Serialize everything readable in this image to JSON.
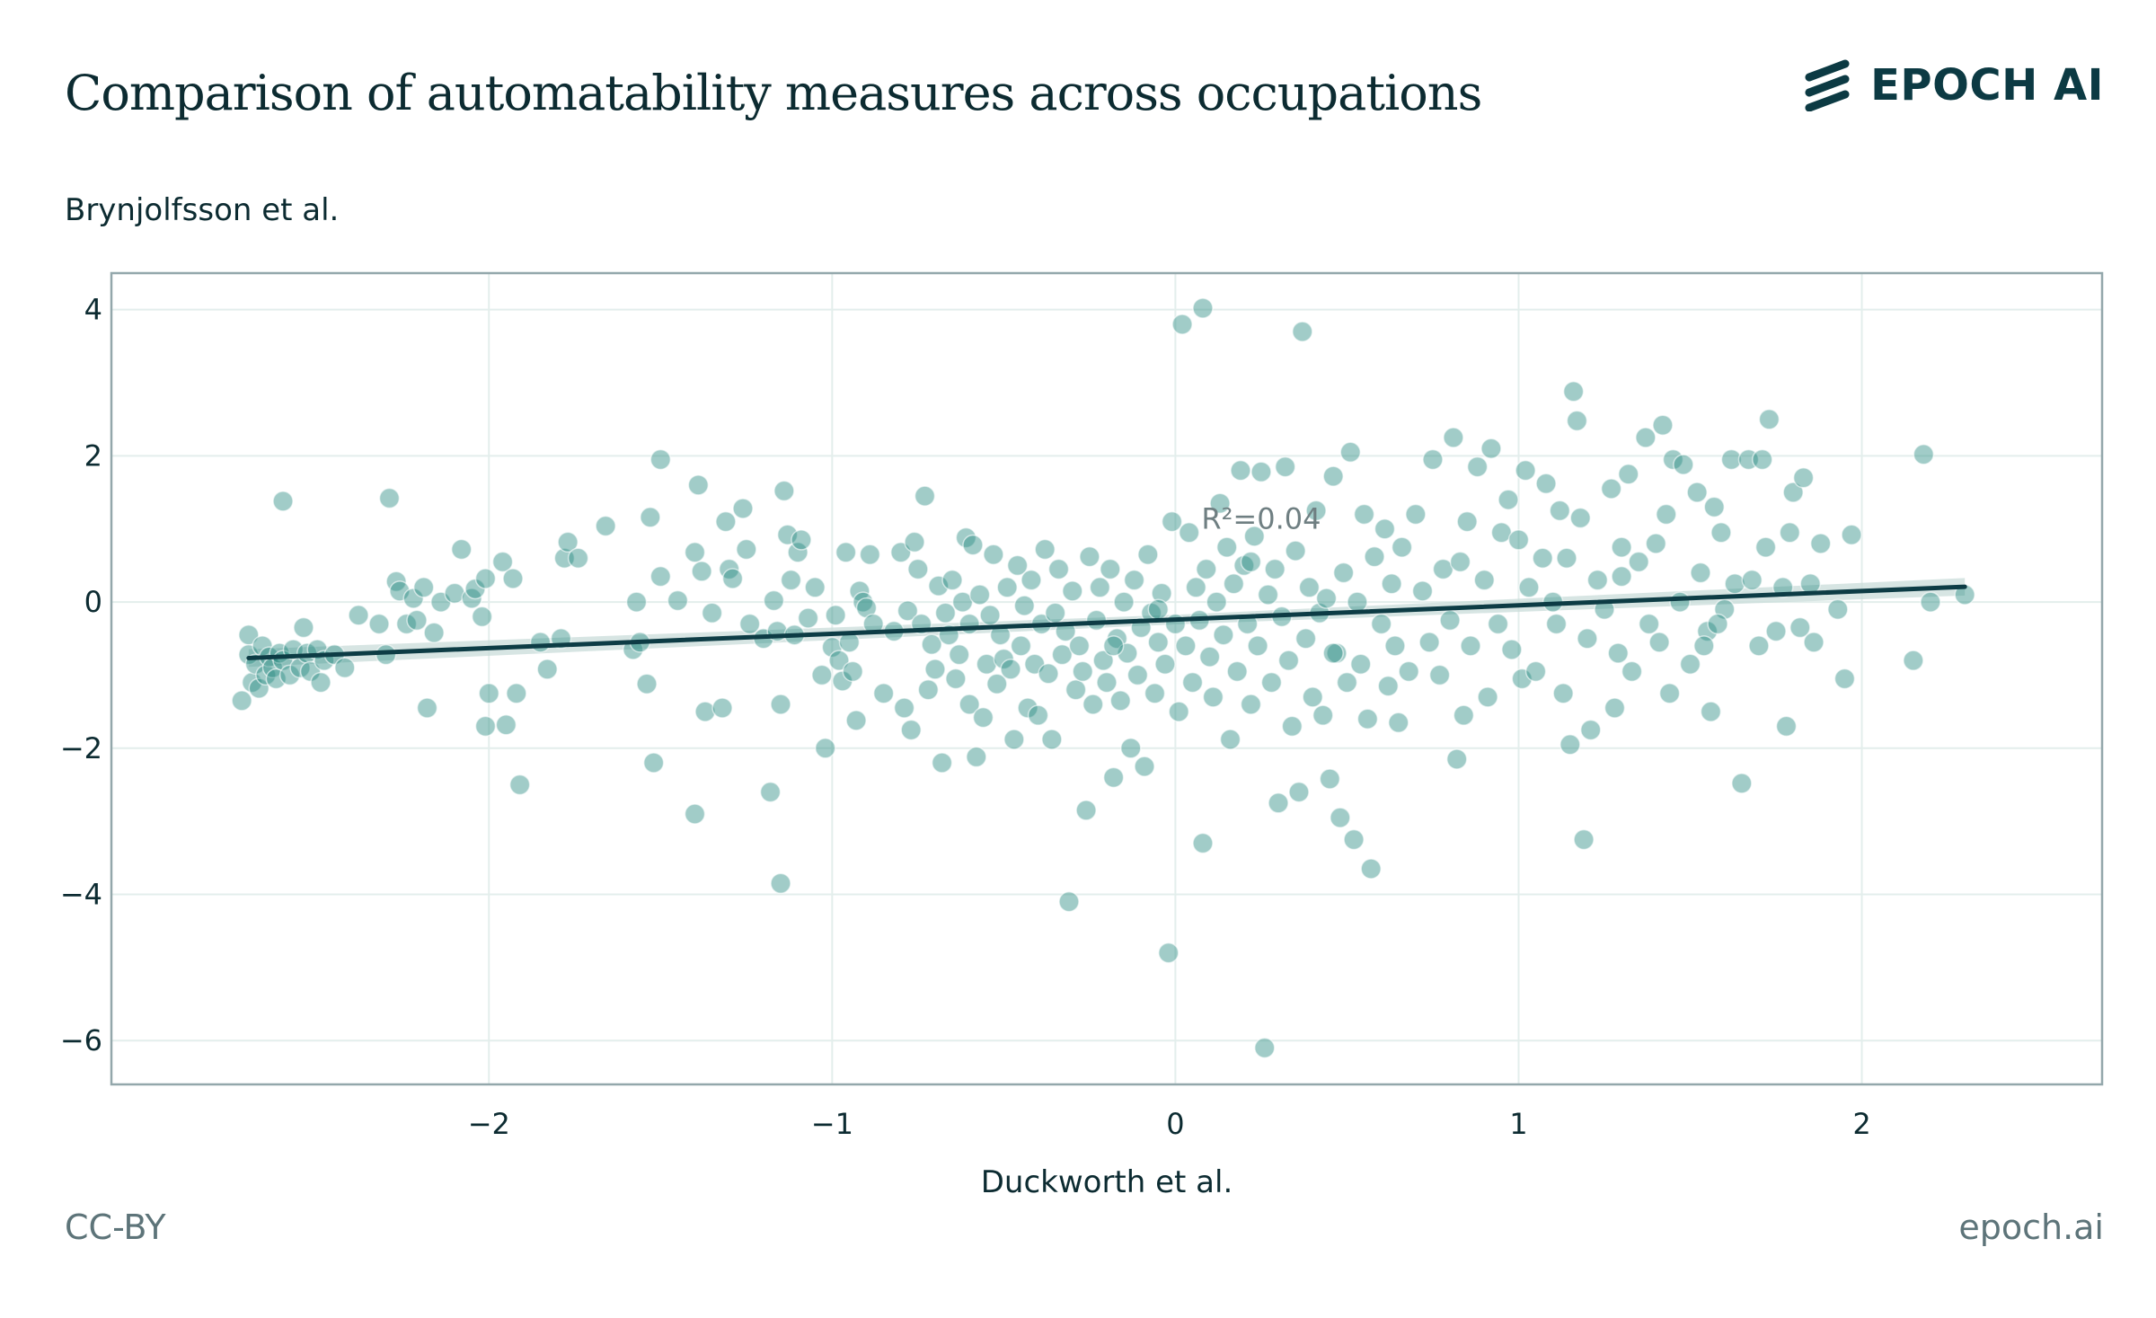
{
  "header": {
    "title": "Comparison of automatability measures across occupations",
    "brand": "EPOCH AI"
  },
  "footer": {
    "license": "CC-BY",
    "site": "epoch.ai"
  },
  "colors": {
    "point": "#2f8f86",
    "line": "#0d3c45",
    "band": "#c9dcda",
    "grid": "#e3eeec",
    "frame": "#93a7ab",
    "text": "#0c2b31"
  },
  "chart_data": {
    "type": "scatter",
    "title": "Comparison of automatability measures across occupations",
    "xlabel": "Duckworth et al.",
    "ylabel": "Brynjolfsson et al.",
    "xlim": [
      -3.1,
      2.7
    ],
    "ylim": [
      -6.6,
      4.5
    ],
    "xticks": [
      -2,
      -1,
      0,
      1,
      2
    ],
    "yticks": [
      -6,
      -4,
      -2,
      0,
      2,
      4
    ],
    "xtick_labels": [
      "−2",
      "−1",
      "0",
      "1",
      "2"
    ],
    "ytick_labels": [
      "−6",
      "−4",
      "−2",
      "0",
      "2",
      "4"
    ],
    "grid": true,
    "annotation": "R²=0.04",
    "annotation_at": [
      0.25,
      1.0
    ],
    "regression": {
      "slope": 0.195,
      "intercept": -0.24,
      "x_range": [
        -2.7,
        2.3
      ],
      "band_halfwidth": 0.12
    },
    "points": [
      [
        -2.72,
        -1.35
      ],
      [
        -2.7,
        -0.45
      ],
      [
        -2.7,
        -0.72
      ],
      [
        -2.69,
        -1.1
      ],
      [
        -2.68,
        -0.85
      ],
      [
        -2.67,
        -1.18
      ],
      [
        -2.66,
        -0.6
      ],
      [
        -2.65,
        -1.0
      ],
      [
        -2.64,
        -0.75
      ],
      [
        -2.63,
        -0.9
      ],
      [
        -2.62,
        -1.05
      ],
      [
        -2.61,
        -0.7
      ],
      [
        -2.6,
        -0.8
      ],
      [
        -2.6,
        1.38
      ],
      [
        -2.58,
        -1.0
      ],
      [
        -2.57,
        -0.65
      ],
      [
        -2.55,
        -0.9
      ],
      [
        -2.54,
        -0.35
      ],
      [
        -2.53,
        -0.7
      ],
      [
        -2.52,
        -0.95
      ],
      [
        -2.5,
        -0.65
      ],
      [
        -2.49,
        -1.1
      ],
      [
        -2.48,
        -0.8
      ],
      [
        -2.45,
        -0.72
      ],
      [
        -2.42,
        -0.9
      ],
      [
        -2.38,
        -0.18
      ],
      [
        -2.32,
        -0.3
      ],
      [
        -2.3,
        -0.72
      ],
      [
        -2.29,
        1.42
      ],
      [
        -2.27,
        0.28
      ],
      [
        -2.26,
        0.15
      ],
      [
        -2.24,
        -0.3
      ],
      [
        -2.22,
        0.05
      ],
      [
        -2.21,
        -0.25
      ],
      [
        -2.19,
        0.2
      ],
      [
        -2.18,
        -1.45
      ],
      [
        -2.16,
        -0.42
      ],
      [
        -2.14,
        0.0
      ],
      [
        -2.1,
        0.12
      ],
      [
        -2.08,
        0.72
      ],
      [
        -2.05,
        0.05
      ],
      [
        -2.04,
        0.18
      ],
      [
        -2.02,
        -0.2
      ],
      [
        -2.01,
        0.32
      ],
      [
        -2.0,
        -1.25
      ],
      [
        -2.01,
        -1.7
      ],
      [
        -1.96,
        0.55
      ],
      [
        -1.95,
        -1.68
      ],
      [
        -1.93,
        0.32
      ],
      [
        -1.92,
        -1.25
      ],
      [
        -1.91,
        -2.5
      ],
      [
        -1.85,
        -0.55
      ],
      [
        -1.83,
        -0.92
      ],
      [
        -1.79,
        -0.5
      ],
      [
        -1.78,
        0.6
      ],
      [
        -1.77,
        0.82
      ],
      [
        -1.74,
        0.6
      ],
      [
        -1.66,
        1.04
      ],
      [
        -1.58,
        -0.65
      ],
      [
        -1.57,
        0.0
      ],
      [
        -1.56,
        -0.55
      ],
      [
        -1.54,
        -1.12
      ],
      [
        -1.53,
        1.16
      ],
      [
        -1.52,
        -2.2
      ],
      [
        -1.5,
        0.35
      ],
      [
        -1.5,
        1.95
      ],
      [
        -1.45,
        0.02
      ],
      [
        -1.4,
        0.68
      ],
      [
        -1.4,
        -2.9
      ],
      [
        -1.39,
        1.6
      ],
      [
        -1.38,
        0.42
      ],
      [
        -1.37,
        -1.5
      ],
      [
        -1.35,
        -0.15
      ],
      [
        -1.32,
        -1.45
      ],
      [
        -1.31,
        1.1
      ],
      [
        -1.3,
        0.45
      ],
      [
        -1.29,
        0.32
      ],
      [
        -1.26,
        1.28
      ],
      [
        -1.25,
        0.72
      ],
      [
        -1.24,
        -0.3
      ],
      [
        -1.2,
        -0.5
      ],
      [
        -1.18,
        -2.6
      ],
      [
        -1.17,
        0.02
      ],
      [
        -1.16,
        -0.4
      ],
      [
        -1.15,
        -1.4
      ],
      [
        -1.15,
        -3.85
      ],
      [
        -1.14,
        1.52
      ],
      [
        -1.13,
        0.92
      ],
      [
        -1.12,
        0.3
      ],
      [
        -1.11,
        -0.45
      ],
      [
        -1.1,
        0.68
      ],
      [
        -1.09,
        0.85
      ],
      [
        -1.07,
        -0.22
      ],
      [
        -1.05,
        0.2
      ],
      [
        -1.03,
        -1.0
      ],
      [
        -1.02,
        -2.0
      ],
      [
        -1.0,
        -0.62
      ],
      [
        -0.99,
        -0.18
      ],
      [
        -0.98,
        -0.8
      ],
      [
        -0.97,
        -1.08
      ],
      [
        -0.96,
        0.68
      ],
      [
        -0.95,
        -0.55
      ],
      [
        -0.94,
        -0.95
      ],
      [
        -0.93,
        -1.62
      ],
      [
        -0.92,
        0.15
      ],
      [
        -0.91,
        0.0
      ],
      [
        -0.9,
        -0.08
      ],
      [
        -0.89,
        0.65
      ],
      [
        -0.88,
        -0.3
      ],
      [
        -0.85,
        -1.25
      ],
      [
        -0.82,
        -0.4
      ],
      [
        -0.8,
        0.68
      ],
      [
        -0.79,
        -1.45
      ],
      [
        -0.78,
        -0.12
      ],
      [
        -0.77,
        -1.75
      ],
      [
        -0.76,
        0.82
      ],
      [
        -0.75,
        0.45
      ],
      [
        -0.74,
        -0.3
      ],
      [
        -0.73,
        1.45
      ],
      [
        -0.72,
        -1.2
      ],
      [
        -0.71,
        -0.58
      ],
      [
        -0.7,
        -0.92
      ],
      [
        -0.69,
        0.22
      ],
      [
        -0.68,
        -2.2
      ],
      [
        -0.67,
        -0.15
      ],
      [
        -0.66,
        -0.45
      ],
      [
        -0.65,
        0.3
      ],
      [
        -0.64,
        -1.05
      ],
      [
        -0.63,
        -0.72
      ],
      [
        -0.62,
        0.0
      ],
      [
        -0.61,
        0.88
      ],
      [
        -0.6,
        -0.3
      ],
      [
        -0.6,
        -1.4
      ],
      [
        -0.59,
        0.78
      ],
      [
        -0.58,
        -2.12
      ],
      [
        -0.57,
        0.1
      ],
      [
        -0.56,
        -1.58
      ],
      [
        -0.55,
        -0.85
      ],
      [
        -0.54,
        -0.18
      ],
      [
        -0.53,
        0.65
      ],
      [
        -0.52,
        -1.12
      ],
      [
        -0.51,
        -0.45
      ],
      [
        -0.5,
        -0.78
      ],
      [
        -0.49,
        0.2
      ],
      [
        -0.48,
        -0.92
      ],
      [
        -0.47,
        -1.88
      ],
      [
        -0.46,
        0.5
      ],
      [
        -0.45,
        -0.6
      ],
      [
        -0.44,
        -0.05
      ],
      [
        -0.43,
        -1.45
      ],
      [
        -0.42,
        0.3
      ],
      [
        -0.41,
        -0.85
      ],
      [
        -0.4,
        -1.55
      ],
      [
        -0.39,
        -0.3
      ],
      [
        -0.38,
        0.72
      ],
      [
        -0.37,
        -0.98
      ],
      [
        -0.36,
        -1.88
      ],
      [
        -0.35,
        -0.15
      ],
      [
        -0.34,
        0.45
      ],
      [
        -0.33,
        -0.72
      ],
      [
        -0.32,
        -0.4
      ],
      [
        -0.31,
        -4.1
      ],
      [
        -0.3,
        0.15
      ],
      [
        -0.29,
        -1.2
      ],
      [
        -0.28,
        -0.6
      ],
      [
        -0.27,
        -0.95
      ],
      [
        -0.26,
        -2.85
      ],
      [
        -0.25,
        0.62
      ],
      [
        -0.24,
        -1.4
      ],
      [
        -0.23,
        -0.25
      ],
      [
        -0.22,
        0.2
      ],
      [
        -0.21,
        -0.8
      ],
      [
        -0.2,
        -1.1
      ],
      [
        -0.19,
        0.45
      ],
      [
        -0.18,
        -2.4
      ],
      [
        -0.17,
        -0.5
      ],
      [
        -0.16,
        -1.35
      ],
      [
        -0.15,
        0.0
      ],
      [
        -0.14,
        -0.7
      ],
      [
        -0.13,
        -2.0
      ],
      [
        -0.12,
        0.3
      ],
      [
        -0.11,
        -1.0
      ],
      [
        -0.1,
        -0.35
      ],
      [
        -0.09,
        -2.25
      ],
      [
        -0.08,
        0.65
      ],
      [
        -0.07,
        -0.15
      ],
      [
        -0.06,
        -1.25
      ],
      [
        -0.05,
        -0.55
      ],
      [
        -0.04,
        0.12
      ],
      [
        -0.03,
        -0.85
      ],
      [
        -0.02,
        -4.8
      ],
      [
        -0.01,
        1.1
      ],
      [
        0.0,
        -0.3
      ],
      [
        0.01,
        -1.5
      ],
      [
        0.02,
        3.8
      ],
      [
        0.03,
        -0.6
      ],
      [
        0.04,
        0.95
      ],
      [
        0.05,
        -1.1
      ],
      [
        0.06,
        0.2
      ],
      [
        0.07,
        -0.25
      ],
      [
        0.08,
        4.02
      ],
      [
        0.08,
        -3.3
      ],
      [
        0.09,
        0.45
      ],
      [
        0.1,
        -0.75
      ],
      [
        0.11,
        -1.3
      ],
      [
        0.12,
        0.0
      ],
      [
        0.13,
        1.35
      ],
      [
        0.14,
        -0.45
      ],
      [
        0.15,
        0.75
      ],
      [
        0.16,
        -1.88
      ],
      [
        0.17,
        0.25
      ],
      [
        0.18,
        -0.95
      ],
      [
        0.19,
        1.8
      ],
      [
        0.2,
        0.5
      ],
      [
        0.21,
        -0.3
      ],
      [
        0.22,
        -1.4
      ],
      [
        0.23,
        0.9
      ],
      [
        0.24,
        -0.6
      ],
      [
        0.25,
        1.78
      ],
      [
        0.26,
        -6.1
      ],
      [
        0.27,
        0.1
      ],
      [
        0.28,
        -1.1
      ],
      [
        0.29,
        0.45
      ],
      [
        0.3,
        -2.75
      ],
      [
        0.31,
        -0.2
      ],
      [
        0.32,
        1.85
      ],
      [
        0.33,
        -0.8
      ],
      [
        0.34,
        -1.7
      ],
      [
        0.35,
        0.7
      ],
      [
        0.36,
        -2.6
      ],
      [
        0.37,
        3.7
      ],
      [
        0.38,
        -0.5
      ],
      [
        0.39,
        0.2
      ],
      [
        0.4,
        -1.3
      ],
      [
        0.41,
        1.25
      ],
      [
        0.42,
        -0.15
      ],
      [
        0.43,
        -1.55
      ],
      [
        0.44,
        0.05
      ],
      [
        0.45,
        -2.42
      ],
      [
        0.46,
        1.72
      ],
      [
        0.47,
        -0.7
      ],
      [
        0.48,
        -2.95
      ],
      [
        0.49,
        0.4
      ],
      [
        0.5,
        -1.1
      ],
      [
        0.51,
        2.05
      ],
      [
        0.52,
        -3.25
      ],
      [
        0.53,
        0.0
      ],
      [
        0.54,
        -0.85
      ],
      [
        0.55,
        1.2
      ],
      [
        0.56,
        -1.6
      ],
      [
        0.57,
        -3.65
      ],
      [
        0.58,
        0.62
      ],
      [
        0.6,
        -0.3
      ],
      [
        0.61,
        1.0
      ],
      [
        0.62,
        -1.15
      ],
      [
        0.63,
        0.25
      ],
      [
        0.64,
        -0.6
      ],
      [
        0.65,
        -1.65
      ],
      [
        0.66,
        0.75
      ],
      [
        0.68,
        -0.95
      ],
      [
        0.7,
        1.2
      ],
      [
        0.72,
        0.15
      ],
      [
        0.74,
        -0.55
      ],
      [
        0.75,
        1.95
      ],
      [
        0.77,
        -1.0
      ],
      [
        0.78,
        0.45
      ],
      [
        0.8,
        -0.25
      ],
      [
        0.81,
        2.25
      ],
      [
        0.82,
        -2.15
      ],
      [
        0.83,
        0.55
      ],
      [
        0.84,
        -1.55
      ],
      [
        0.85,
        1.1
      ],
      [
        0.86,
        -0.6
      ],
      [
        0.88,
        1.85
      ],
      [
        0.9,
        0.3
      ],
      [
        0.91,
        -1.3
      ],
      [
        0.92,
        2.1
      ],
      [
        0.94,
        -0.3
      ],
      [
        0.95,
        0.95
      ],
      [
        0.97,
        1.4
      ],
      [
        0.98,
        -0.65
      ],
      [
        1.0,
        0.85
      ],
      [
        1.01,
        -1.05
      ],
      [
        1.02,
        1.8
      ],
      [
        1.03,
        0.2
      ],
      [
        1.05,
        -0.95
      ],
      [
        1.07,
        0.6
      ],
      [
        1.08,
        1.62
      ],
      [
        1.1,
        0.0
      ],
      [
        1.11,
        -0.3
      ],
      [
        1.12,
        1.25
      ],
      [
        1.13,
        -1.25
      ],
      [
        1.14,
        0.6
      ],
      [
        1.15,
        -1.95
      ],
      [
        1.16,
        2.88
      ],
      [
        1.17,
        2.48
      ],
      [
        1.18,
        1.15
      ],
      [
        1.19,
        -3.25
      ],
      [
        1.2,
        -0.5
      ],
      [
        1.21,
        -1.75
      ],
      [
        1.23,
        0.3
      ],
      [
        1.25,
        -0.1
      ],
      [
        1.27,
        1.55
      ],
      [
        1.28,
        -1.45
      ],
      [
        1.29,
        -0.7
      ],
      [
        1.3,
        0.75
      ],
      [
        1.32,
        1.75
      ],
      [
        1.33,
        -0.95
      ],
      [
        1.35,
        0.55
      ],
      [
        1.37,
        2.25
      ],
      [
        1.38,
        -0.3
      ],
      [
        1.4,
        0.8
      ],
      [
        1.41,
        -0.55
      ],
      [
        1.42,
        2.42
      ],
      [
        1.43,
        1.2
      ],
      [
        1.44,
        -1.25
      ],
      [
        1.45,
        1.95
      ],
      [
        1.47,
        0.0
      ],
      [
        1.48,
        1.88
      ],
      [
        1.5,
        -0.85
      ],
      [
        1.52,
        1.5
      ],
      [
        1.53,
        0.4
      ],
      [
        1.55,
        -0.4
      ],
      [
        1.56,
        -1.5
      ],
      [
        1.57,
        1.3
      ],
      [
        1.59,
        0.95
      ],
      [
        1.6,
        -0.1
      ],
      [
        1.62,
        1.95
      ],
      [
        1.63,
        0.25
      ],
      [
        1.65,
        -2.48
      ],
      [
        1.67,
        1.95
      ],
      [
        1.68,
        0.3
      ],
      [
        1.7,
        -0.6
      ],
      [
        1.71,
        1.95
      ],
      [
        1.72,
        0.75
      ],
      [
        1.73,
        2.5
      ],
      [
        1.75,
        -0.4
      ],
      [
        1.77,
        0.2
      ],
      [
        1.78,
        -1.7
      ],
      [
        1.79,
        0.95
      ],
      [
        1.8,
        1.5
      ],
      [
        1.82,
        -0.35
      ],
      [
        1.83,
        1.7
      ],
      [
        1.85,
        0.25
      ],
      [
        1.86,
        -0.55
      ],
      [
        1.88,
        0.8
      ],
      [
        1.93,
        -0.1
      ],
      [
        1.95,
        -1.05
      ],
      [
        1.97,
        0.92
      ],
      [
        2.15,
        -0.8
      ],
      [
        2.18,
        2.02
      ],
      [
        2.2,
        0.0
      ],
      [
        2.3,
        0.1
      ],
      [
        1.54,
        -0.6
      ],
      [
        1.58,
        -0.3
      ],
      [
        1.3,
        0.35
      ],
      [
        0.46,
        -0.7
      ],
      [
        -0.18,
        -0.6
      ],
      [
        0.22,
        0.55
      ],
      [
        -0.05,
        -0.1
      ]
    ]
  }
}
